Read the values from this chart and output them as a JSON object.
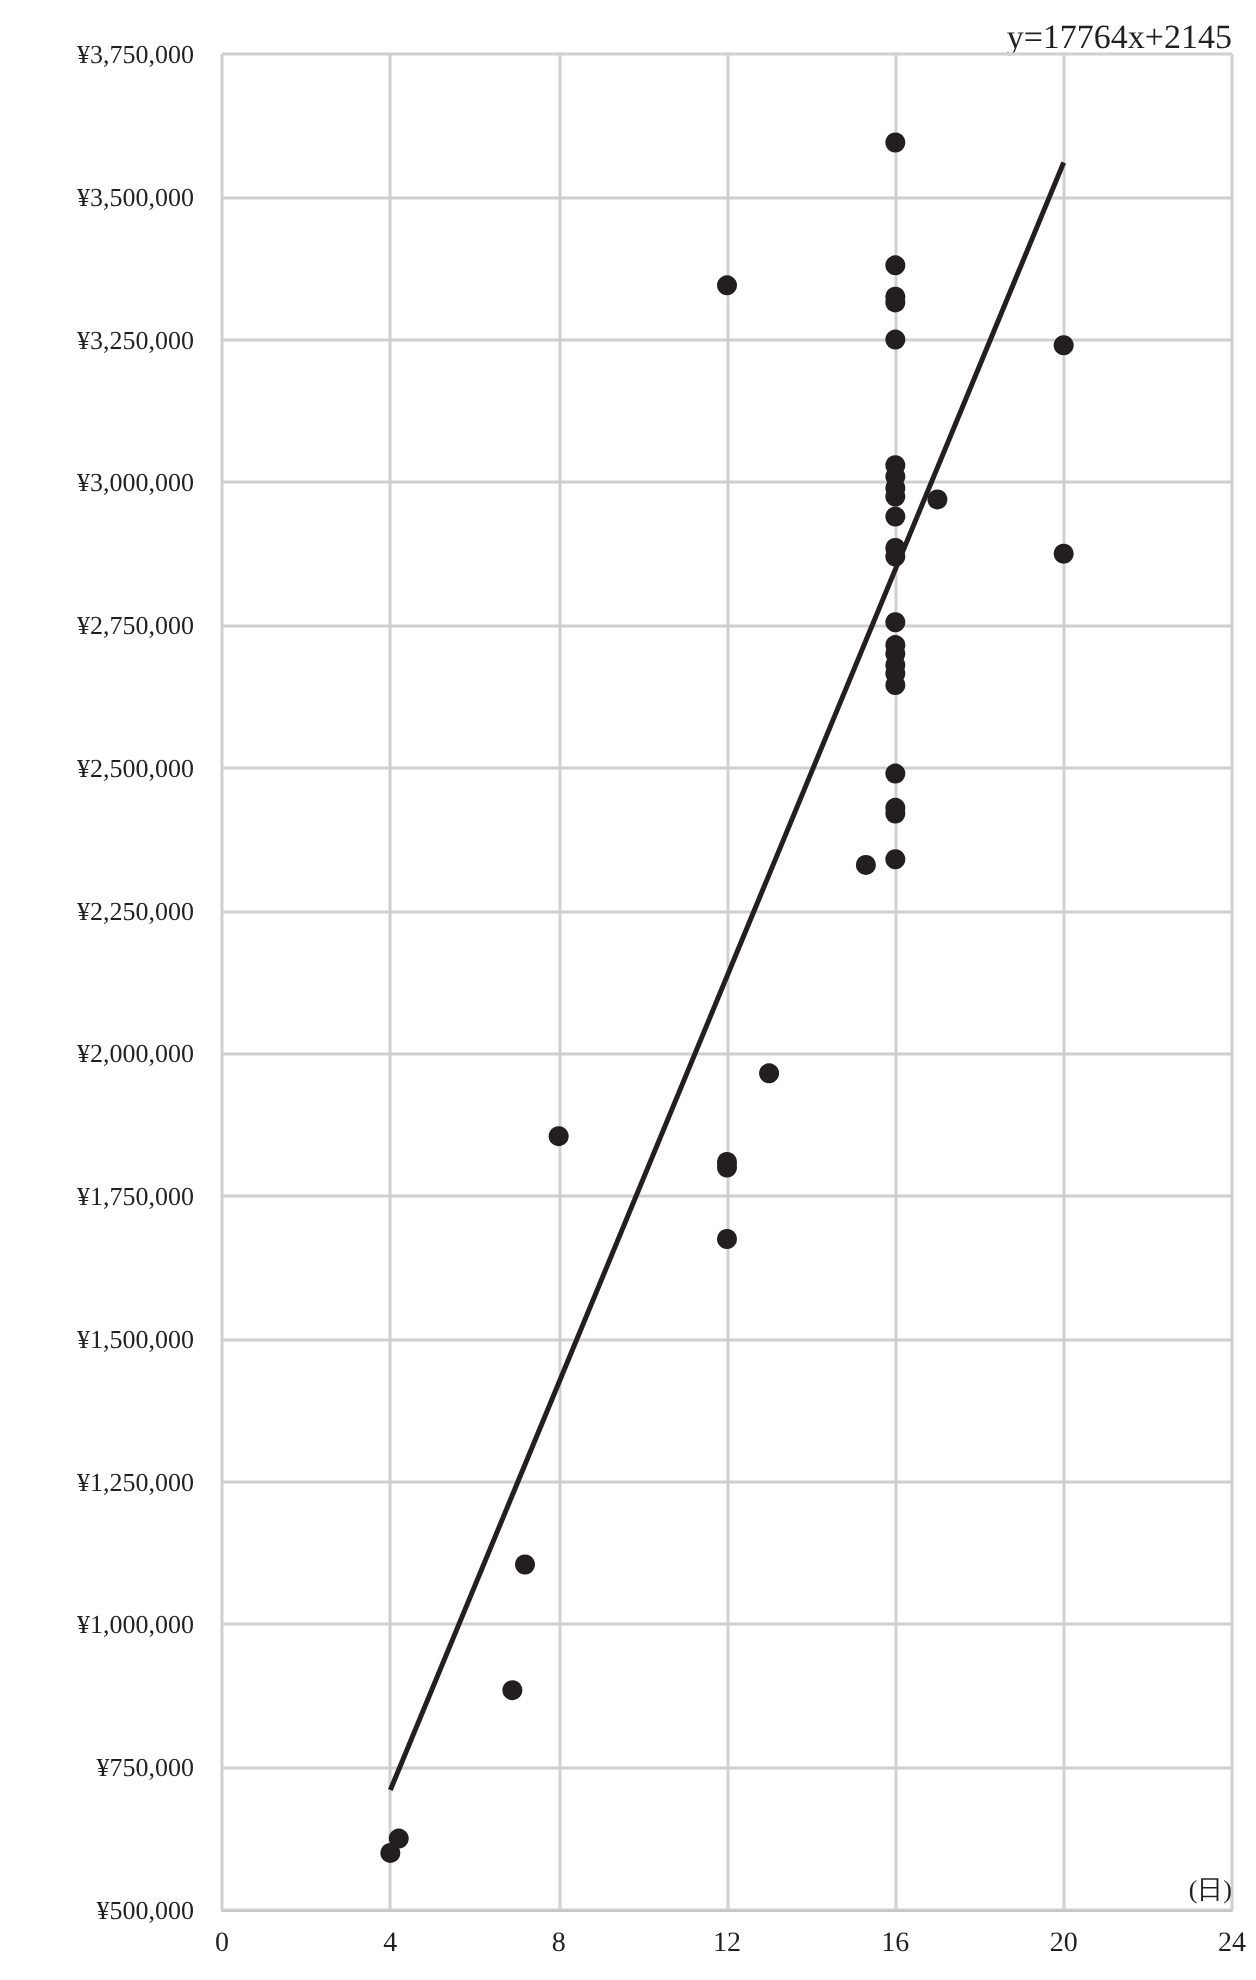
{
  "chart_data": {
    "type": "scatter",
    "xlabel": "(日)",
    "annotations": [
      "y=17764x+2145"
    ],
    "xlim": [
      0,
      24
    ],
    "xticks": [
      0,
      4,
      8,
      12,
      16,
      20,
      24
    ],
    "ylim": [
      500000,
      3750000
    ],
    "yticks": [
      {
        "value": 500000,
        "label": "¥500,000"
      },
      {
        "value": 750000,
        "label": "¥750,000"
      },
      {
        "value": 1000000,
        "label": "¥1,000,000"
      },
      {
        "value": 1250000,
        "label": "¥1,250,000"
      },
      {
        "value": 1500000,
        "label": "¥1,500,000"
      },
      {
        "value": 1750000,
        "label": "¥1,750,000"
      },
      {
        "value": 2000000,
        "label": "¥2,000,000"
      },
      {
        "value": 2250000,
        "label": "¥2,250,000"
      },
      {
        "value": 2500000,
        "label": "¥2,500,000"
      },
      {
        "value": 2750000,
        "label": "¥2,750,000"
      },
      {
        "value": 3000000,
        "label": "¥3,000,000"
      },
      {
        "value": 3250000,
        "label": "¥3,250,000"
      },
      {
        "value": 3500000,
        "label": "¥3,500,000"
      },
      {
        "value": 3750000,
        "label": "¥3,750,000"
      }
    ],
    "grid": true,
    "marker": "circle",
    "series": [
      {
        "color": "#231f20",
        "x": [
          16,
          16,
          16,
          16,
          16,
          16,
          16,
          16,
          16,
          16,
          16,
          16,
          17,
          16,
          16,
          16,
          16,
          16,
          16,
          16,
          16,
          16,
          16,
          15.3,
          12,
          20,
          20,
          13,
          8,
          12,
          12,
          12,
          7.2,
          6.9,
          4.2,
          4
        ],
        "values": [
          3595000,
          3380000,
          3325000,
          3315000,
          3250000,
          3030000,
          3010000,
          2990000,
          2975000,
          2940000,
          2885000,
          2870000,
          2970000,
          2755000,
          2715000,
          2700000,
          2680000,
          2665000,
          2645000,
          2490000,
          2430000,
          2420000,
          2340000,
          2330000,
          3345000,
          3240000,
          2875000,
          1965000,
          1855000,
          1810000,
          1800000,
          1675000,
          1105000,
          885000,
          625000,
          600000
        ]
      },
      {
        "type": "line",
        "color": "#231f20",
        "marker": "none",
        "x": [
          4,
          20
        ],
        "values": [
          710000,
          3560000
        ]
      }
    ]
  }
}
